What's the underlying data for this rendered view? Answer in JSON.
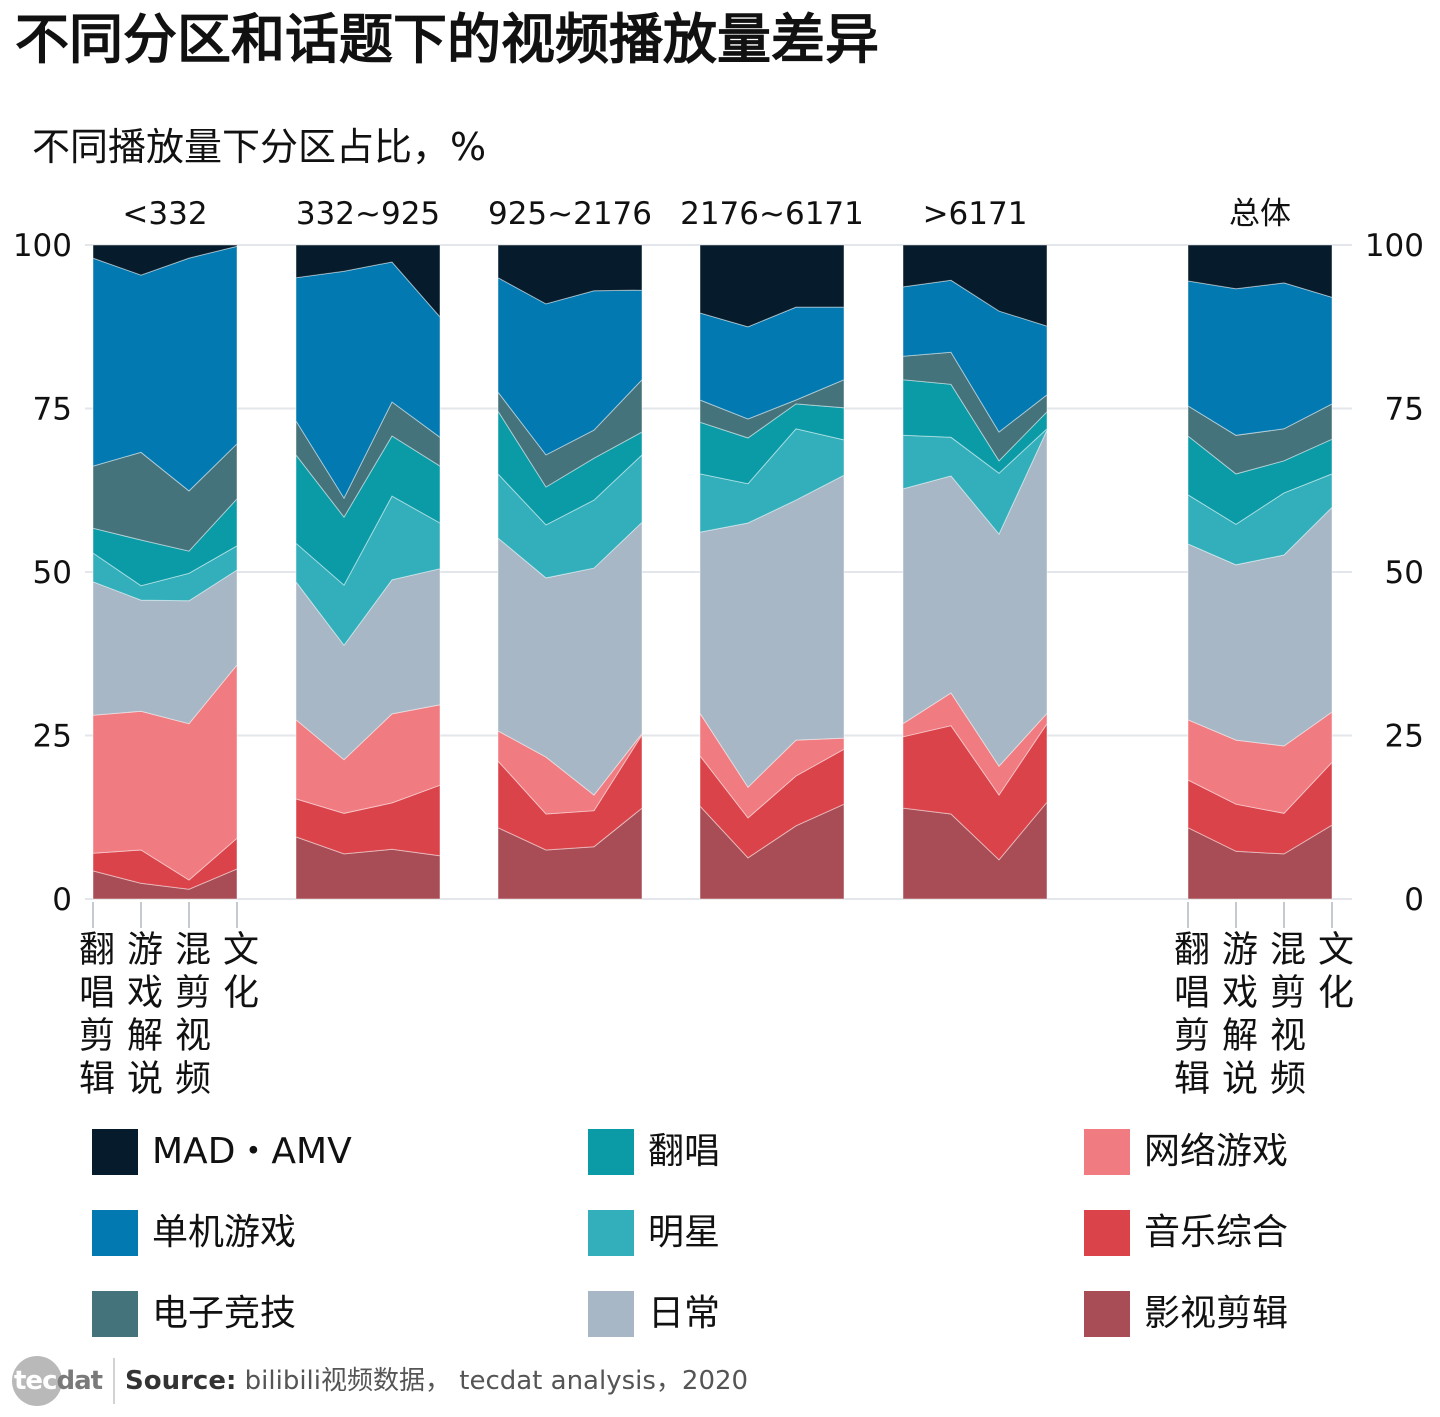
{
  "chart_data": {
    "type": "area",
    "stacked": true,
    "title": "不同分区和话题下的视频播放量差异",
    "subtitle": "不同播放量下分区占比，%",
    "ylim": [
      0,
      100
    ],
    "yticks": [
      0,
      25,
      50,
      75,
      100
    ],
    "right_axis_labels": true,
    "grid": true,
    "legend_placement": "bottom",
    "categories": [
      "翻唱剪辑",
      "游戏解说",
      "混剪视频",
      "文化"
    ],
    "series": [
      {
        "name": "MAD・AMV",
        "color": "#061c2c"
      },
      {
        "name": "单机游戏",
        "color": "#0279b1"
      },
      {
        "name": "电子竞技",
        "color": "#45737b"
      },
      {
        "name": "翻唱",
        "color": "#0a9ba6"
      },
      {
        "name": "明星",
        "color": "#32afbb"
      },
      {
        "name": "日常",
        "color": "#a7b7c5"
      },
      {
        "name": "网络游戏",
        "color": "#f07b80"
      },
      {
        "name": "音乐综合",
        "color": "#da434a"
      },
      {
        "name": "影视剪辑",
        "color": "#a84d55"
      }
    ],
    "panels": [
      {
        "label": "<332",
        "show_categories": true,
        "values": [
          [
            2.0,
            4.6,
            2.0,
            0.2
          ],
          [
            31.8,
            27.1,
            35.6,
            30.2
          ],
          [
            9.5,
            13.4,
            9.2,
            8.4
          ],
          [
            3.8,
            7.0,
            3.4,
            7.2
          ],
          [
            4.4,
            2.2,
            4.2,
            3.7
          ],
          [
            20.4,
            17.0,
            18.8,
            14.5
          ],
          [
            21.1,
            21.2,
            23.9,
            26.5
          ],
          [
            2.7,
            5.1,
            1.4,
            4.7
          ],
          [
            4.3,
            2.4,
            1.5,
            4.6
          ]
        ]
      },
      {
        "label": "332~925",
        "show_categories": false,
        "values": [
          [
            5.0,
            4.0,
            2.6,
            11.0
          ],
          [
            21.9,
            34.7,
            21.4,
            18.4
          ],
          [
            5.2,
            2.9,
            5.2,
            4.4
          ],
          [
            13.5,
            10.4,
            9.2,
            8.7
          ],
          [
            5.9,
            9.2,
            12.8,
            7.0
          ],
          [
            21.1,
            17.5,
            20.5,
            20.8
          ],
          [
            12.1,
            8.2,
            13.6,
            12.3
          ],
          [
            5.8,
            6.2,
            7.1,
            10.8
          ],
          [
            9.5,
            6.9,
            7.6,
            6.6
          ]
        ]
      },
      {
        "label": "925~2176",
        "show_categories": false,
        "values": [
          [
            5.0,
            9.0,
            7.0,
            6.9
          ],
          [
            17.5,
            23.1,
            21.3,
            13.7
          ],
          [
            2.9,
            4.9,
            4.3,
            8.0
          ],
          [
            9.6,
            5.8,
            6.4,
            3.5
          ],
          [
            9.8,
            8.1,
            10.4,
            10.3
          ],
          [
            29.5,
            27.4,
            34.7,
            32.3
          ],
          [
            4.6,
            8.7,
            2.4,
            0.2
          ],
          [
            10.2,
            5.5,
            5.5,
            11.2
          ],
          [
            10.9,
            7.5,
            8.0,
            13.9
          ]
        ]
      },
      {
        "label": "2176~6171",
        "show_categories": false,
        "values": [
          [
            10.4,
            12.5,
            9.5,
            9.5
          ],
          [
            13.3,
            14.1,
            14.2,
            11.1
          ],
          [
            3.4,
            2.9,
            0.6,
            4.3
          ],
          [
            7.9,
            7.0,
            3.8,
            4.9
          ],
          [
            8.9,
            6.0,
            10.9,
            5.4
          ],
          [
            27.7,
            40.4,
            36.7,
            40.2
          ],
          [
            6.5,
            4.7,
            5.5,
            1.7
          ],
          [
            7.7,
            6.1,
            7.6,
            8.4
          ],
          [
            14.2,
            6.3,
            11.2,
            14.5
          ]
        ]
      },
      {
        "label": ">6171",
        "show_categories": false,
        "values": [
          [
            6.4,
            5.4,
            10.1,
            12.4
          ],
          [
            10.6,
            11.0,
            18.5,
            10.5
          ],
          [
            3.6,
            4.9,
            4.4,
            2.6
          ],
          [
            8.5,
            8.1,
            1.9,
            2.6
          ],
          [
            8.2,
            5.9,
            9.3,
            0.2
          ],
          [
            35.9,
            33.2,
            35.5,
            43.3
          ],
          [
            2.0,
            5.0,
            4.4,
            1.6
          ],
          [
            10.9,
            13.5,
            9.9,
            12.0
          ],
          [
            13.9,
            13.0,
            6.0,
            14.8
          ]
        ]
      },
      {
        "label": "总体",
        "show_categories": true,
        "values": [
          [
            5.5,
            6.7,
            5.8,
            8.0
          ],
          [
            19.1,
            22.4,
            22.3,
            16.3
          ],
          [
            4.6,
            5.9,
            4.9,
            5.4
          ],
          [
            9.0,
            7.7,
            4.9,
            5.3
          ],
          [
            7.5,
            6.2,
            9.5,
            5.1
          ],
          [
            26.9,
            26.8,
            29.2,
            31.3
          ],
          [
            9.2,
            9.8,
            10.3,
            7.7
          ],
          [
            7.3,
            7.2,
            6.2,
            9.6
          ],
          [
            10.9,
            7.3,
            6.9,
            11.3
          ]
        ]
      }
    ]
  },
  "logo": {
    "text_a": "tec",
    "text_b": "dat"
  },
  "source": {
    "label": "Source:",
    "text": "bilibili视频数据， tecdat analysis，2020"
  }
}
